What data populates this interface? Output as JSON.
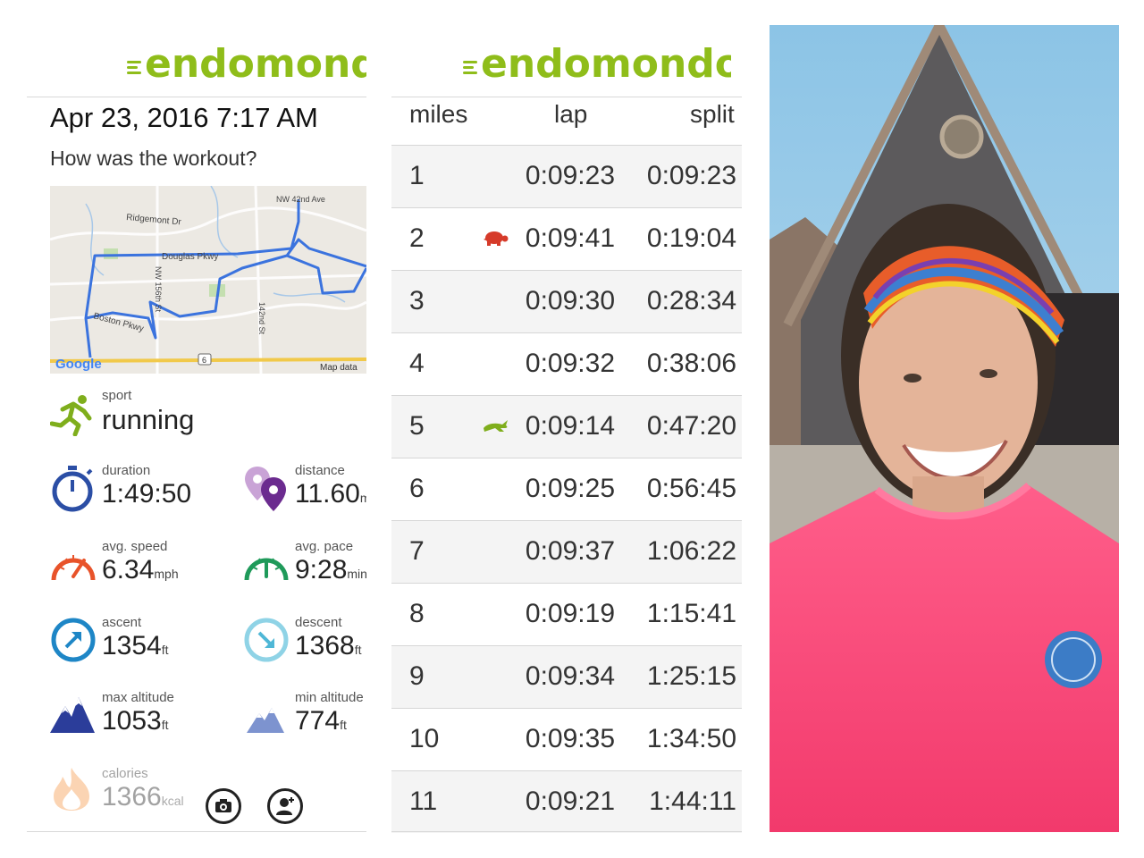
{
  "brand": {
    "name": "endomondo",
    "color": "#8fbd1a"
  },
  "workout": {
    "date": "Apr 23, 2016 7:17 AM",
    "prompt": "How was the workout?",
    "map": {
      "labels": [
        "NW 42nd Ave",
        "Ridgemont Dr",
        "Douglas Pkwy",
        "NW 156th St",
        "Boston Pkwy",
        "142nd St",
        "6",
        "Google",
        "Map data"
      ]
    },
    "sport": {
      "label": "sport",
      "value": "running",
      "icon": "running-man-icon"
    },
    "stats": {
      "duration": {
        "label": "duration",
        "value": "1:49:50",
        "unit": ""
      },
      "distance": {
        "label": "distance",
        "value": "11.60",
        "unit": "mi"
      },
      "avg_speed": {
        "label": "avg. speed",
        "value": "6.34",
        "unit": "mph"
      },
      "avg_pace": {
        "label": "avg. pace",
        "value": "9:28",
        "unit": "min"
      },
      "ascent": {
        "label": "ascent",
        "value": "1354",
        "unit": "ft"
      },
      "descent": {
        "label": "descent",
        "value": "1368",
        "unit": "ft"
      },
      "max_altitude": {
        "label": "max altitude",
        "value": "1053",
        "unit": "ft"
      },
      "min_altitude": {
        "label": "min altitude",
        "value": "774",
        "unit": "ft"
      },
      "calories": {
        "label": "calories",
        "value": "1366",
        "unit": "kcal"
      }
    },
    "actions": {
      "camera": "camera-icon",
      "tag_friend": "add-person-icon"
    }
  },
  "laps": {
    "headers": {
      "miles": "miles",
      "lap": "lap",
      "split": "split"
    },
    "rows": [
      {
        "mile": "1",
        "lap": "0:09:23",
        "split": "0:09:23",
        "marker": ""
      },
      {
        "mile": "2",
        "lap": "0:09:41",
        "split": "0:19:04",
        "marker": "turtle"
      },
      {
        "mile": "3",
        "lap": "0:09:30",
        "split": "0:28:34",
        "marker": ""
      },
      {
        "mile": "4",
        "lap": "0:09:32",
        "split": "0:38:06",
        "marker": ""
      },
      {
        "mile": "5",
        "lap": "0:09:14",
        "split": "0:47:20",
        "marker": "rabbit"
      },
      {
        "mile": "6",
        "lap": "0:09:25",
        "split": "0:56:45",
        "marker": ""
      },
      {
        "mile": "7",
        "lap": "0:09:37",
        "split": "1:06:22",
        "marker": ""
      },
      {
        "mile": "8",
        "lap": "0:09:19",
        "split": "1:15:41",
        "marker": ""
      },
      {
        "mile": "9",
        "lap": "0:09:34",
        "split": "1:25:15",
        "marker": ""
      },
      {
        "mile": "10",
        "lap": "0:09:35",
        "split": "1:34:50",
        "marker": ""
      },
      {
        "mile": "11",
        "lap": "0:09:21",
        "split": "1:44:11",
        "marker": ""
      }
    ],
    "colors": {
      "slowest": "#d63b2a",
      "fastest": "#7fae1c"
    }
  }
}
